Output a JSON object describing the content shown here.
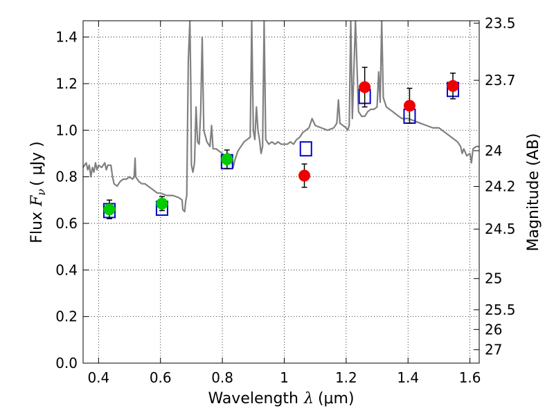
{
  "chart_data": {
    "type": "scatter",
    "xlabel_prefix": "Wavelength",
    "xlabel_symbol": "λ",
    "xlabel_unit": "(μm)",
    "ylabel_prefix": "Flux",
    "ylabel_symbol": "F",
    "ylabel_subscript": "ν",
    "ylabel_unit": "( μJy )",
    "y2label": "Magnitude (AB)",
    "xlim": [
      0.35,
      1.63
    ],
    "ylim": [
      0.0,
      1.47
    ],
    "grid": true,
    "x_ticks": [
      0.4,
      0.6,
      0.8,
      1.0,
      1.2,
      1.4,
      1.6
    ],
    "x_tick_labels": [
      "0.4",
      "0.6",
      "0.8",
      "1",
      "1.2",
      "1.4",
      "1.6"
    ],
    "y_ticks": [
      0.0,
      0.2,
      0.4,
      0.6,
      0.8,
      1.0,
      1.2,
      1.4
    ],
    "y_tick_labels": [
      "0.0",
      "0.2",
      "0.4",
      "0.6",
      "0.8",
      "1.0",
      "1.2",
      "1.4"
    ],
    "y2_ticks": [
      {
        "flux": 1.4599,
        "label": "23.5"
      },
      {
        "flux": 1.2143,
        "label": "23.7"
      },
      {
        "flux": 0.912,
        "label": "24"
      },
      {
        "flux": 0.7586,
        "label": "24.2"
      },
      {
        "flux": 0.5754,
        "label": "24.5"
      },
      {
        "flux": 0.3631,
        "label": "25"
      },
      {
        "flux": 0.2291,
        "label": "25.5"
      },
      {
        "flux": 0.1445,
        "label": "26"
      },
      {
        "flux": 0.0575,
        "label": "27"
      }
    ],
    "series": [
      {
        "marker": "open-square",
        "color": "#0000cc",
        "points": [
          {
            "x": 0.435,
            "y": 0.655
          },
          {
            "x": 0.605,
            "y": 0.665
          },
          {
            "x": 0.815,
            "y": 0.865
          },
          {
            "x": 1.07,
            "y": 0.92
          },
          {
            "x": 1.26,
            "y": 1.145
          },
          {
            "x": 1.405,
            "y": 1.06
          },
          {
            "x": 1.545,
            "y": 1.175
          }
        ]
      },
      {
        "marker": "filled-circle",
        "color": "#00cc00",
        "points": [
          {
            "x": 0.435,
            "y": 0.66,
            "err": 0.04
          },
          {
            "x": 0.605,
            "y": 0.685,
            "err": 0.03
          },
          {
            "x": 0.815,
            "y": 0.875,
            "err": 0.04
          }
        ]
      },
      {
        "marker": "filled-circle",
        "color": "#ee0000",
        "points": [
          {
            "x": 1.065,
            "y": 0.805,
            "err": 0.05
          },
          {
            "x": 1.26,
            "y": 1.185,
            "err": 0.085
          },
          {
            "x": 1.405,
            "y": 1.105,
            "err": 0.075
          },
          {
            "x": 1.545,
            "y": 1.19,
            "err": 0.055
          }
        ]
      },
      {
        "marker": "line",
        "color": "#808080",
        "points": [
          [
            0.35,
            0.84
          ],
          [
            0.36,
            0.86
          ],
          [
            0.365,
            0.83
          ],
          [
            0.37,
            0.85
          ],
          [
            0.375,
            0.8
          ],
          [
            0.38,
            0.84
          ],
          [
            0.385,
            0.82
          ],
          [
            0.39,
            0.86
          ],
          [
            0.395,
            0.83
          ],
          [
            0.4,
            0.85
          ],
          [
            0.41,
            0.84
          ],
          [
            0.42,
            0.86
          ],
          [
            0.425,
            0.83
          ],
          [
            0.43,
            0.85
          ],
          [
            0.44,
            0.85
          ],
          [
            0.445,
            0.8
          ],
          [
            0.45,
            0.77
          ],
          [
            0.46,
            0.76
          ],
          [
            0.47,
            0.78
          ],
          [
            0.48,
            0.79
          ],
          [
            0.49,
            0.79
          ],
          [
            0.5,
            0.8
          ],
          [
            0.51,
            0.79
          ],
          [
            0.515,
            0.8
          ],
          [
            0.518,
            0.88
          ],
          [
            0.52,
            0.8
          ],
          [
            0.53,
            0.78
          ],
          [
            0.54,
            0.77
          ],
          [
            0.55,
            0.77
          ],
          [
            0.56,
            0.76
          ],
          [
            0.57,
            0.75
          ],
          [
            0.58,
            0.74
          ],
          [
            0.59,
            0.73
          ],
          [
            0.6,
            0.73
          ],
          [
            0.62,
            0.72
          ],
          [
            0.64,
            0.72
          ],
          [
            0.66,
            0.71
          ],
          [
            0.67,
            0.7
          ],
          [
            0.672,
            0.66
          ],
          [
            0.678,
            0.65
          ],
          [
            0.682,
            0.7
          ],
          [
            0.685,
            0.72
          ],
          [
            0.69,
            1.3
          ],
          [
            0.695,
            1.47
          ],
          [
            0.698,
            1.2
          ],
          [
            0.7,
            0.85
          ],
          [
            0.705,
            0.82
          ],
          [
            0.71,
            0.86
          ],
          [
            0.715,
            1.1
          ],
          [
            0.72,
            0.95
          ],
          [
            0.725,
            0.94
          ],
          [
            0.73,
            1.08
          ],
          [
            0.735,
            1.4
          ],
          [
            0.74,
            1.0
          ],
          [
            0.75,
            0.95
          ],
          [
            0.76,
            0.93
          ],
          [
            0.765,
            1.02
          ],
          [
            0.77,
            0.92
          ],
          [
            0.78,
            0.92
          ],
          [
            0.79,
            0.91
          ],
          [
            0.8,
            0.9
          ],
          [
            0.81,
            0.88
          ],
          [
            0.815,
            0.86
          ],
          [
            0.82,
            0.9
          ],
          [
            0.83,
            0.87
          ],
          [
            0.835,
            0.84
          ],
          [
            0.84,
            0.87
          ],
          [
            0.85,
            0.91
          ],
          [
            0.86,
            0.93
          ],
          [
            0.87,
            0.95
          ],
          [
            0.88,
            0.96
          ],
          [
            0.89,
            0.97
          ],
          [
            0.895,
            1.47
          ],
          [
            0.9,
            1.0
          ],
          [
            0.905,
            0.96
          ],
          [
            0.91,
            1.1
          ],
          [
            0.915,
            1.0
          ],
          [
            0.92,
            0.96
          ],
          [
            0.925,
            0.9
          ],
          [
            0.93,
            0.93
          ],
          [
            0.935,
            1.47
          ],
          [
            0.94,
            0.96
          ],
          [
            0.95,
            0.94
          ],
          [
            0.96,
            0.95
          ],
          [
            0.97,
            0.94
          ],
          [
            0.98,
            0.95
          ],
          [
            0.99,
            0.94
          ],
          [
            1.0,
            0.94
          ],
          [
            1.01,
            0.94
          ],
          [
            1.02,
            0.95
          ],
          [
            1.03,
            0.94
          ],
          [
            1.04,
            0.96
          ],
          [
            1.05,
            0.97
          ],
          [
            1.06,
            0.99
          ],
          [
            1.07,
            1.0
          ],
          [
            1.08,
            1.01
          ],
          [
            1.09,
            1.05
          ],
          [
            1.1,
            1.02
          ],
          [
            1.12,
            1.01
          ],
          [
            1.14,
            1.0
          ],
          [
            1.16,
            1.01
          ],
          [
            1.17,
            1.03
          ],
          [
            1.175,
            1.13
          ],
          [
            1.18,
            1.03
          ],
          [
            1.19,
            1.02
          ],
          [
            1.2,
            1.01
          ],
          [
            1.205,
            1.0
          ],
          [
            1.21,
            1.02
          ],
          [
            1.215,
            1.47
          ],
          [
            1.22,
            1.05
          ],
          [
            1.23,
            1.47
          ],
          [
            1.24,
            1.08
          ],
          [
            1.25,
            1.06
          ],
          [
            1.26,
            1.06
          ],
          [
            1.27,
            1.08
          ],
          [
            1.28,
            1.09
          ],
          [
            1.29,
            1.09
          ],
          [
            1.3,
            1.1
          ],
          [
            1.305,
            1.25
          ],
          [
            1.31,
            1.12
          ],
          [
            1.315,
            1.47
          ],
          [
            1.32,
            1.14
          ],
          [
            1.33,
            1.1
          ],
          [
            1.34,
            1.09
          ],
          [
            1.35,
            1.08
          ],
          [
            1.36,
            1.07
          ],
          [
            1.37,
            1.06
          ],
          [
            1.38,
            1.05
          ],
          [
            1.4,
            1.05
          ],
          [
            1.42,
            1.04
          ],
          [
            1.44,
            1.03
          ],
          [
            1.46,
            1.02
          ],
          [
            1.48,
            1.01
          ],
          [
            1.5,
            1.01
          ],
          [
            1.51,
            1.0
          ],
          [
            1.52,
            0.99
          ],
          [
            1.53,
            0.98
          ],
          [
            1.54,
            0.97
          ],
          [
            1.55,
            0.96
          ],
          [
            1.56,
            0.95
          ],
          [
            1.57,
            0.93
          ],
          [
            1.575,
            0.9
          ],
          [
            1.58,
            0.92
          ],
          [
            1.59,
            0.89
          ],
          [
            1.6,
            0.9
          ],
          [
            1.605,
            0.86
          ],
          [
            1.61,
            0.92
          ],
          [
            1.62,
            0.93
          ],
          [
            1.63,
            0.93
          ]
        ]
      }
    ]
  }
}
